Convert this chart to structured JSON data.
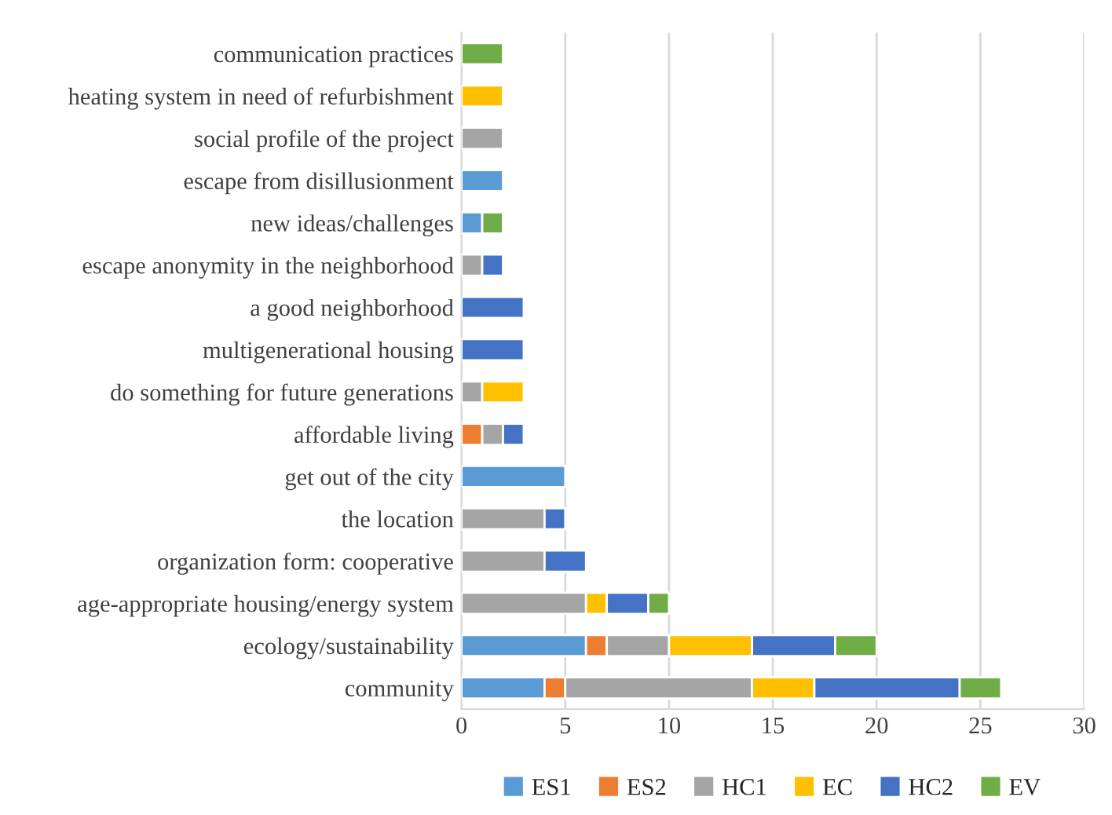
{
  "chart_data": {
    "type": "bar",
    "orientation": "horizontal",
    "stacked": true,
    "categories": [
      "communication practices",
      "heating system in need of refurbishment",
      "social profile of the project",
      "escape from disillusionment",
      "new ideas/challenges",
      "escape anonymity in the neighborhood",
      "a good neighborhood",
      "multigenerational housing",
      "do something for future generations",
      "affordable living",
      "get out of the city",
      "the location",
      "organization form: cooperative",
      "age-appropriate housing/energy system",
      "ecology/sustainability",
      "community"
    ],
    "series": [
      {
        "name": "ES1",
        "color": "#5b9bd5",
        "values": [
          null,
          null,
          null,
          2,
          1,
          null,
          null,
          null,
          null,
          null,
          5,
          null,
          null,
          null,
          6,
          4
        ]
      },
      {
        "name": "ES2",
        "color": "#ed7d31",
        "values": [
          null,
          null,
          null,
          null,
          null,
          null,
          null,
          null,
          null,
          1,
          null,
          null,
          null,
          null,
          1,
          1
        ]
      },
      {
        "name": "HC1",
        "color": "#a5a5a5",
        "values": [
          null,
          null,
          2,
          null,
          null,
          1,
          null,
          null,
          1,
          1,
          null,
          4,
          4,
          6,
          3,
          9
        ]
      },
      {
        "name": "EC",
        "color": "#ffc000",
        "values": [
          null,
          2,
          null,
          null,
          null,
          null,
          null,
          null,
          2,
          null,
          null,
          null,
          null,
          1,
          4,
          3
        ]
      },
      {
        "name": "HC2",
        "color": "#4472c4",
        "values": [
          null,
          null,
          null,
          null,
          null,
          1,
          3,
          3,
          null,
          1,
          null,
          1,
          2,
          2,
          4,
          7
        ]
      },
      {
        "name": "EV",
        "color": "#70ad47",
        "values": [
          2,
          null,
          null,
          null,
          1,
          null,
          null,
          null,
          null,
          null,
          null,
          null,
          null,
          1,
          2,
          2
        ]
      }
    ],
    "xlim": [
      0,
      30
    ],
    "xticks": [
      0,
      5,
      10,
      15,
      20,
      25,
      30
    ],
    "grid": "x",
    "legend": "bottom"
  }
}
